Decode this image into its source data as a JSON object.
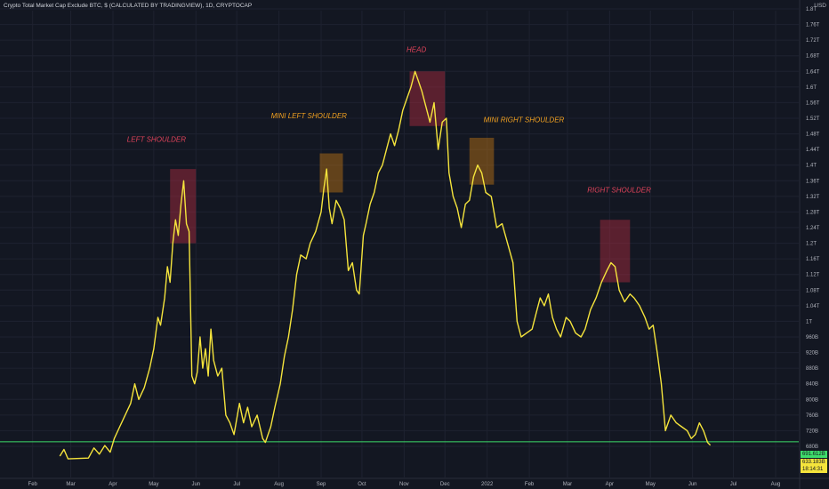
{
  "header": {
    "title": "Crypto Total Market Cap Exclude BTC, $ (CALCULATED BY TRADINGVIEW), 1D, CRYPTOCAP",
    "currency": "USD"
  },
  "price_badges": {
    "level": "691.612B",
    "last": "633.183B",
    "countdown": "18:14:31"
  },
  "colors": {
    "background": "#131722",
    "line": "#f5e43c",
    "level_line": "#3ddc6a",
    "red_annotation": "#e0435a",
    "orange_annotation": "#f0a020"
  },
  "chart_data": {
    "type": "line",
    "title": "Crypto Total Market Cap Exclude BTC, $ (CALCULATED BY TRADINGVIEW), 1D, CRYPTOCAP",
    "ylabel": "USD",
    "y_unit": "billion USD",
    "y_ticks": [
      "1.8T",
      "1.76T",
      "1.72T",
      "1.68T",
      "1.64T",
      "1.6T",
      "1.56T",
      "1.52T",
      "1.48T",
      "1.44T",
      "1.4T",
      "1.36T",
      "1.32T",
      "1.28T",
      "1.24T",
      "1.2T",
      "1.16T",
      "1.12T",
      "1.08T",
      "1.04T",
      "1T",
      "960B",
      "920B",
      "880B",
      "840B",
      "800B",
      "760B",
      "720B",
      "680B"
    ],
    "y_tick_values": [
      1800,
      1760,
      1720,
      1680,
      1640,
      1600,
      1560,
      1520,
      1480,
      1440,
      1400,
      1360,
      1320,
      1280,
      1240,
      1200,
      1160,
      1120,
      1080,
      1040,
      1000,
      960,
      920,
      880,
      840,
      800,
      760,
      720,
      680
    ],
    "x_ticks": [
      "Feb",
      "Mar",
      "Apr",
      "May",
      "Jun",
      "Jul",
      "Aug",
      "Sep",
      "Oct",
      "Nov",
      "Dec",
      "2022",
      "Feb",
      "Mar",
      "Apr",
      "May",
      "Jun",
      "Jul",
      "Aug"
    ],
    "x_tick_dates": [
      "2021-02-01",
      "2021-03-01",
      "2021-04-01",
      "2021-05-01",
      "2021-06-01",
      "2021-07-01",
      "2021-08-01",
      "2021-09-01",
      "2021-10-01",
      "2021-11-01",
      "2021-12-01",
      "2022-01-01",
      "2022-02-01",
      "2022-03-01",
      "2022-04-01",
      "2022-05-01",
      "2022-06-01",
      "2022-07-01",
      "2022-08-01"
    ],
    "x_range": [
      "2021-01-08",
      "2022-08-18"
    ],
    "ylim": [
      640,
      1820
    ],
    "horizontal_line": 691.612,
    "series": [
      {
        "points": [
          [
            "2021-02-21",
            655
          ],
          [
            "2021-02-24",
            672
          ],
          [
            "2021-02-27",
            648
          ],
          [
            "2021-03-14",
            650
          ],
          [
            "2021-03-18",
            676
          ],
          [
            "2021-03-22",
            660
          ],
          [
            "2021-03-26",
            682
          ],
          [
            "2021-03-30",
            665
          ],
          [
            "2021-04-02",
            700
          ],
          [
            "2021-04-06",
            730
          ],
          [
            "2021-04-10",
            760
          ],
          [
            "2021-04-14",
            790
          ],
          [
            "2021-04-17",
            840
          ],
          [
            "2021-04-20",
            800
          ],
          [
            "2021-04-24",
            830
          ],
          [
            "2021-04-28",
            880
          ],
          [
            "2021-05-01",
            930
          ],
          [
            "2021-05-04",
            1010
          ],
          [
            "2021-05-06",
            990
          ],
          [
            "2021-05-09",
            1060
          ],
          [
            "2021-05-11",
            1140
          ],
          [
            "2021-05-13",
            1100
          ],
          [
            "2021-05-15",
            1200
          ],
          [
            "2021-05-17",
            1260
          ],
          [
            "2021-05-19",
            1220
          ],
          [
            "2021-05-21",
            1300
          ],
          [
            "2021-05-23",
            1360
          ],
          [
            "2021-05-25",
            1250
          ],
          [
            "2021-05-27",
            1230
          ],
          [
            "2021-05-29",
            860
          ],
          [
            "2021-05-31",
            840
          ],
          [
            "2021-06-02",
            870
          ],
          [
            "2021-06-04",
            960
          ],
          [
            "2021-06-06",
            880
          ],
          [
            "2021-06-08",
            930
          ],
          [
            "2021-06-10",
            860
          ],
          [
            "2021-06-12",
            980
          ],
          [
            "2021-06-14",
            900
          ],
          [
            "2021-06-17",
            860
          ],
          [
            "2021-06-20",
            880
          ],
          [
            "2021-06-23",
            760
          ],
          [
            "2021-06-26",
            740
          ],
          [
            "2021-06-29",
            710
          ],
          [
            "2021-07-03",
            790
          ],
          [
            "2021-07-06",
            740
          ],
          [
            "2021-07-09",
            780
          ],
          [
            "2021-07-12",
            730
          ],
          [
            "2021-07-16",
            760
          ],
          [
            "2021-07-20",
            700
          ],
          [
            "2021-07-22",
            690
          ],
          [
            "2021-07-26",
            730
          ],
          [
            "2021-07-29",
            780
          ],
          [
            "2021-08-02",
            840
          ],
          [
            "2021-08-05",
            910
          ],
          [
            "2021-08-08",
            960
          ],
          [
            "2021-08-11",
            1030
          ],
          [
            "2021-08-14",
            1120
          ],
          [
            "2021-08-17",
            1170
          ],
          [
            "2021-08-21",
            1160
          ],
          [
            "2021-08-24",
            1200
          ],
          [
            "2021-08-28",
            1230
          ],
          [
            "2021-09-01",
            1280
          ],
          [
            "2021-09-03",
            1340
          ],
          [
            "2021-09-05",
            1390
          ],
          [
            "2021-09-07",
            1290
          ],
          [
            "2021-09-09",
            1250
          ],
          [
            "2021-09-12",
            1310
          ],
          [
            "2021-09-15",
            1290
          ],
          [
            "2021-09-18",
            1260
          ],
          [
            "2021-09-21",
            1130
          ],
          [
            "2021-09-24",
            1150
          ],
          [
            "2021-09-27",
            1080
          ],
          [
            "2021-09-29",
            1070
          ],
          [
            "2021-10-02",
            1220
          ],
          [
            "2021-10-04",
            1250
          ],
          [
            "2021-10-07",
            1300
          ],
          [
            "2021-10-10",
            1330
          ],
          [
            "2021-10-13",
            1380
          ],
          [
            "2021-10-16",
            1400
          ],
          [
            "2021-10-19",
            1440
          ],
          [
            "2021-10-22",
            1480
          ],
          [
            "2021-10-25",
            1450
          ],
          [
            "2021-10-28",
            1490
          ],
          [
            "2021-10-31",
            1540
          ],
          [
            "2021-11-03",
            1570
          ],
          [
            "2021-11-06",
            1600
          ],
          [
            "2021-11-09",
            1640
          ],
          [
            "2021-11-11",
            1620
          ],
          [
            "2021-11-14",
            1590
          ],
          [
            "2021-11-17",
            1550
          ],
          [
            "2021-11-20",
            1510
          ],
          [
            "2021-11-23",
            1560
          ],
          [
            "2021-11-26",
            1440
          ],
          [
            "2021-11-29",
            1510
          ],
          [
            "2021-12-02",
            1520
          ],
          [
            "2021-12-04",
            1380
          ],
          [
            "2021-12-07",
            1320
          ],
          [
            "2021-12-10",
            1290
          ],
          [
            "2021-12-13",
            1240
          ],
          [
            "2021-12-16",
            1300
          ],
          [
            "2021-12-19",
            1310
          ],
          [
            "2021-12-22",
            1370
          ],
          [
            "2021-12-25",
            1400
          ],
          [
            "2021-12-28",
            1380
          ],
          [
            "2021-12-31",
            1330
          ],
          [
            "2022-01-04",
            1320
          ],
          [
            "2022-01-08",
            1240
          ],
          [
            "2022-01-12",
            1250
          ],
          [
            "2022-01-16",
            1200
          ],
          [
            "2022-01-20",
            1150
          ],
          [
            "2022-01-23",
            1000
          ],
          [
            "2022-01-26",
            960
          ],
          [
            "2022-01-30",
            970
          ],
          [
            "2022-02-03",
            980
          ],
          [
            "2022-02-06",
            1020
          ],
          [
            "2022-02-09",
            1060
          ],
          [
            "2022-02-12",
            1040
          ],
          [
            "2022-02-15",
            1070
          ],
          [
            "2022-02-18",
            1010
          ],
          [
            "2022-02-21",
            980
          ],
          [
            "2022-02-24",
            960
          ],
          [
            "2022-02-28",
            1010
          ],
          [
            "2022-03-03",
            1000
          ],
          [
            "2022-03-07",
            970
          ],
          [
            "2022-03-11",
            960
          ],
          [
            "2022-03-14",
            980
          ],
          [
            "2022-03-18",
            1030
          ],
          [
            "2022-03-22",
            1060
          ],
          [
            "2022-03-26",
            1100
          ],
          [
            "2022-03-30",
            1130
          ],
          [
            "2022-04-02",
            1150
          ],
          [
            "2022-04-05",
            1140
          ],
          [
            "2022-04-08",
            1080
          ],
          [
            "2022-04-12",
            1050
          ],
          [
            "2022-04-16",
            1070
          ],
          [
            "2022-04-19",
            1060
          ],
          [
            "2022-04-23",
            1040
          ],
          [
            "2022-04-27",
            1010
          ],
          [
            "2022-04-30",
            980
          ],
          [
            "2022-05-03",
            990
          ],
          [
            "2022-05-06",
            920
          ],
          [
            "2022-05-09",
            840
          ],
          [
            "2022-05-12",
            720
          ],
          [
            "2022-05-16",
            760
          ],
          [
            "2022-05-20",
            740
          ],
          [
            "2022-05-24",
            730
          ],
          [
            "2022-05-28",
            720
          ],
          [
            "2022-05-31",
            700
          ],
          [
            "2022-06-03",
            710
          ],
          [
            "2022-06-06",
            740
          ],
          [
            "2022-06-09",
            720
          ],
          [
            "2022-06-12",
            690
          ],
          [
            "2022-06-14",
            683
          ]
        ]
      }
    ],
    "annotations": [
      {
        "text": "LEFT SHOULDER",
        "color": "red"
      },
      {
        "text": "MINI LEFT SHOULDER",
        "color": "orange"
      },
      {
        "text": "HEAD",
        "color": "red"
      },
      {
        "text": "MINI RIGHT SHOULDER",
        "color": "orange"
      },
      {
        "text": "RIGHT SHOULDER",
        "color": "red"
      }
    ]
  }
}
